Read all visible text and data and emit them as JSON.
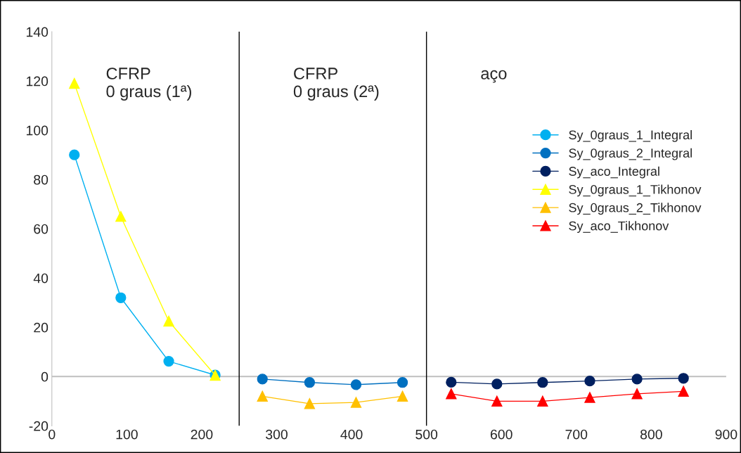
{
  "chart_data": {
    "type": "line",
    "xlim": [
      0,
      900
    ],
    "xticks": [
      0,
      100,
      200,
      300,
      400,
      500,
      600,
      700,
      800,
      900
    ],
    "ylim": [
      -20,
      140
    ],
    "yticks": [
      -20,
      0,
      20,
      40,
      60,
      80,
      100,
      120,
      140
    ],
    "grid": false,
    "legend": "right",
    "series": [
      {
        "name": "Sy_0graus_1_Integral",
        "color": "#00b0f0",
        "marker": "circle",
        "x": [
          30,
          92,
          156,
          218
        ],
        "values": [
          90,
          32,
          6.2,
          0.6
        ]
      },
      {
        "name": "Sy_0graus_2_Integral",
        "color": "#0070c0",
        "marker": "circle",
        "x": [
          281,
          344,
          406,
          468
        ],
        "values": [
          -1,
          -2.4,
          -3.3,
          -2.4
        ]
      },
      {
        "name": "Sy_aco_Integral",
        "color": "#002060",
        "marker": "circle",
        "x": [
          533,
          594,
          655,
          718,
          781,
          843
        ],
        "values": [
          -2.3,
          -3,
          -2.4,
          -1.8,
          -1,
          -0.7
        ]
      },
      {
        "name": "Sy_0graus_1_Tikhonov",
        "color": "#ffff00",
        "marker": "triangle",
        "x": [
          30,
          92,
          156,
          218
        ],
        "values": [
          119,
          65,
          22.5,
          0.5
        ]
      },
      {
        "name": "Sy_0graus_2_Tikhonov",
        "color": "#ffc000",
        "marker": "triangle",
        "x": [
          281,
          344,
          406,
          468
        ],
        "values": [
          -8,
          -11,
          -10.5,
          -8
        ]
      },
      {
        "name": "Sy_aco_Tikhonov",
        "color": "#ff0000",
        "marker": "triangle",
        "x": [
          533,
          594,
          655,
          718,
          781,
          843
        ],
        "values": [
          -7,
          -10,
          -10,
          -8.5,
          -7,
          -6
        ]
      }
    ],
    "ref_lines": [
      {
        "axis": "y",
        "value": 0,
        "color": "#bfbfbf"
      },
      {
        "axis": "x",
        "value": 250,
        "color": "#000000"
      },
      {
        "axis": "x",
        "value": 500,
        "color": "#000000"
      }
    ],
    "annotations": [
      "CFRP\n0 graus (1ª)",
      "CFRP\n0 graus (2ª)",
      "aço"
    ]
  }
}
